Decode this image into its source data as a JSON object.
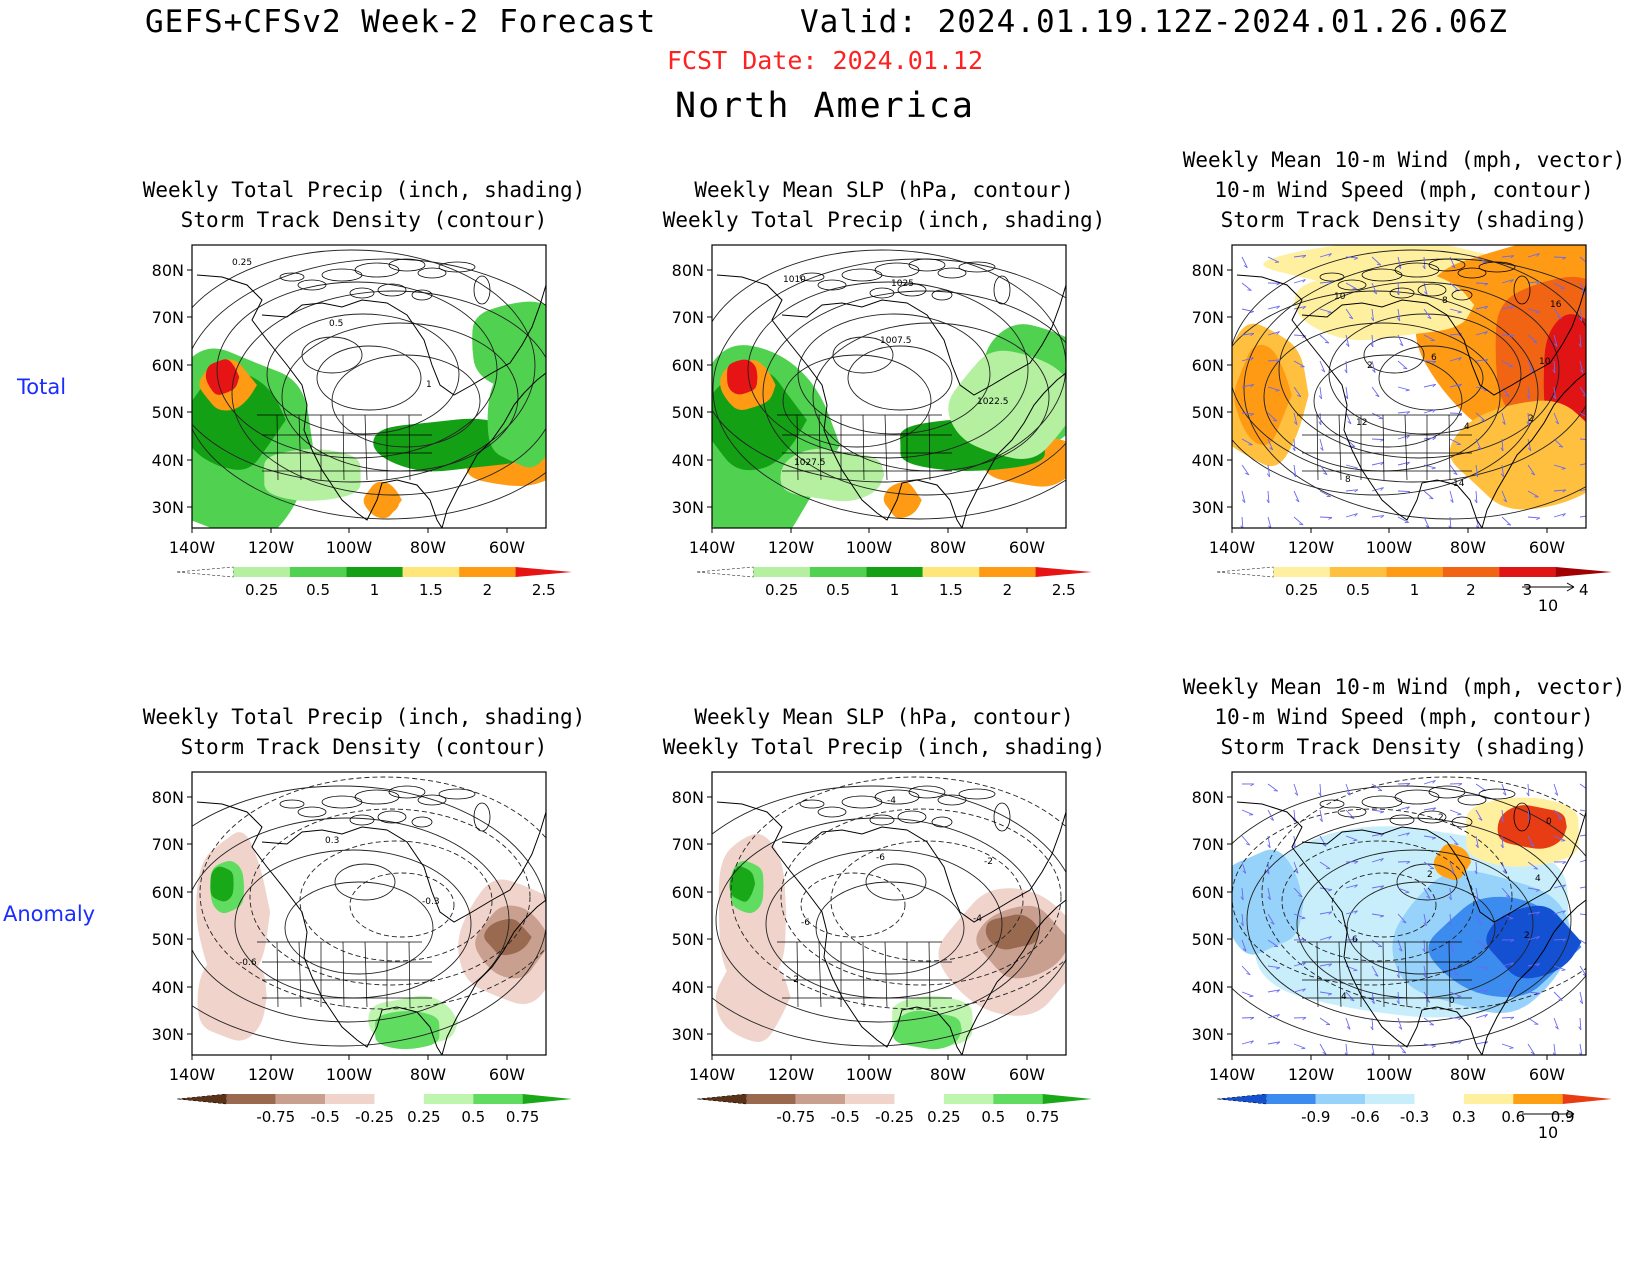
{
  "header": {
    "title_left": "GEFS+CFSv2 Week-2 Forecast",
    "title_right": "Valid: 2024.01.19.12Z-2024.01.26.06Z",
    "fcst_date": "FCST Date: 2024.01.12",
    "region": "North America"
  },
  "row_labels": {
    "total": "Total",
    "anomaly": "Anomaly"
  },
  "axes": {
    "lat_labels": [
      "80N",
      "70N",
      "60N",
      "50N",
      "40N",
      "30N"
    ],
    "lon_labels": [
      "140W",
      "120W",
      "100W",
      "80W",
      "60W"
    ]
  },
  "panels": [
    {
      "id": "total-precip-storm",
      "title_lines": [
        "Weekly Total Precip (inch, shading)",
        "Storm Track Density (contour)"
      ],
      "colorbar": {
        "labels": [
          "0.25",
          "0.5",
          "1",
          "1.5",
          "2",
          "2.5"
        ],
        "colors": [
          "#ffffff",
          "#b4f0a0",
          "#50d250",
          "#14a014",
          "#ffe678",
          "#ff9a14",
          "#e61414"
        ]
      },
      "contour_labels": [
        "0.25",
        "0.5",
        "1"
      ],
      "has_vector_key": false
    },
    {
      "id": "total-slp-precip",
      "title_lines": [
        "Weekly Mean SLP (hPa, contour)",
        "Weekly Total Precip (inch, shading)"
      ],
      "colorbar": {
        "labels": [
          "0.25",
          "0.5",
          "1",
          "1.5",
          "2",
          "2.5"
        ],
        "colors": [
          "#ffffff",
          "#b4f0a0",
          "#50d250",
          "#14a014",
          "#ffe678",
          "#ff9a14",
          "#e61414"
        ]
      },
      "contour_labels": [
        "1010",
        "1007.5",
        "1022.5",
        "1027.5",
        "1025"
      ],
      "has_vector_key": false
    },
    {
      "id": "total-wind-storm",
      "title_lines": [
        "Weekly Mean 10-m Wind (mph, vector)",
        "10-m Wind Speed (mph, contour)",
        "Storm Track Density (shading)"
      ],
      "colorbar": {
        "labels": [
          "0.25",
          "0.5",
          "1",
          "2",
          "3",
          "4"
        ],
        "colors": [
          "#ffffff",
          "#fff0a0",
          "#ffc040",
          "#ff9a14",
          "#f06414",
          "#e01414",
          "#a00000"
        ]
      },
      "contour_labels": [
        "10",
        "6",
        "2",
        "8",
        "8",
        "10",
        "12",
        "14",
        "16",
        "2",
        "4"
      ],
      "has_vector_key": true,
      "vector_key": "10"
    },
    {
      "id": "anom-precip-storm",
      "title_lines": [
        "Weekly Total Precip (inch, shading)",
        "Storm Track Density (contour)"
      ],
      "colorbar": {
        "labels": [
          "-0.75",
          "-0.5",
          "-0.25",
          "0.25",
          "0.5",
          "0.75"
        ],
        "colors": [
          "#5a3218",
          "#9a6a50",
          "#c9a090",
          "#f0d4cc",
          "#ffffff",
          "#c0f5b0",
          "#60dc60",
          "#18a818"
        ]
      },
      "contour_labels": [
        "0.3",
        "-0.3",
        "-0.6"
      ],
      "has_vector_key": false
    },
    {
      "id": "anom-slp-precip",
      "title_lines": [
        "Weekly Mean SLP (hPa, contour)",
        "Weekly Total Precip (inch, shading)"
      ],
      "colorbar": {
        "labels": [
          "-0.75",
          "-0.5",
          "-0.25",
          "0.25",
          "0.5",
          "0.75"
        ],
        "colors": [
          "#5a3218",
          "#9a6a50",
          "#c9a090",
          "#f0d4cc",
          "#ffffff",
          "#c0f5b0",
          "#60dc60",
          "#18a818"
        ]
      },
      "contour_labels": [
        "-6",
        "-4",
        "-2",
        "-4",
        "-2",
        "-6"
      ],
      "has_vector_key": false
    },
    {
      "id": "anom-wind-storm",
      "title_lines": [
        "Weekly Mean 10-m Wind (mph, vector)",
        "10-m Wind Speed (mph, contour)",
        "Storm Track Density (shading)"
      ],
      "colorbar": {
        "labels": [
          "-0.9",
          "-0.6",
          "-0.3",
          "0.3",
          "0.6",
          "0.9"
        ],
        "colors": [
          "#1450d2",
          "#3c8cf0",
          "#96d2fa",
          "#c8eefc",
          "#ffffff",
          "#fff0a0",
          "#ffa014",
          "#e83c14"
        ]
      },
      "contour_labels": [
        "2",
        "2",
        "4",
        "2",
        "4",
        "6",
        "0",
        "0"
      ],
      "has_vector_key": true,
      "vector_key": "10"
    }
  ]
}
